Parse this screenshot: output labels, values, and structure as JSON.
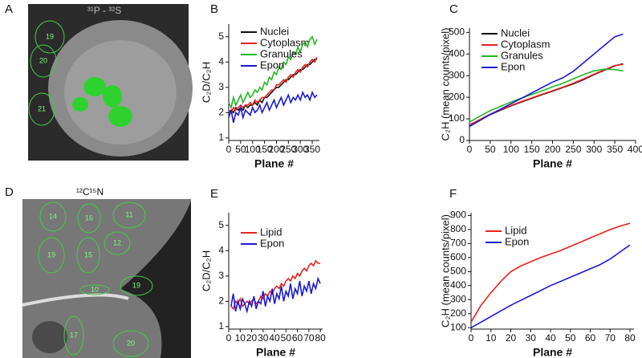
{
  "images": [
    {
      "panel_label": "A",
      "title": "³¹P - ³²S",
      "regions": [
        "19",
        "20",
        "21"
      ]
    },
    {
      "panel_label": "D",
      "title": "¹²C¹⁵N",
      "regions": [
        "14",
        "16",
        "11",
        "19",
        "12",
        "15",
        "10",
        "19",
        "17",
        "20"
      ]
    }
  ],
  "chart_data": [
    {
      "type": "line",
      "panel_label": "B",
      "xlabel": "Plane #",
      "ylabel": "C₂D/C₂H",
      "x": [
        0,
        10,
        20,
        30,
        40,
        50,
        60,
        70,
        80,
        90,
        100,
        110,
        120,
        130,
        140,
        150,
        160,
        170,
        180,
        190,
        200,
        210,
        220,
        230,
        240,
        250,
        260,
        270,
        280,
        290,
        300,
        310,
        320,
        330,
        340,
        350,
        360,
        370
      ],
      "series": [
        {
          "name": "Nuclei",
          "color": "#111111",
          "values": [
            2.0,
            2.1,
            2.0,
            2.2,
            2.1,
            2.2,
            2.1,
            2.3,
            2.2,
            2.3,
            2.3,
            2.4,
            2.3,
            2.5,
            2.4,
            2.6,
            2.6,
            2.7,
            2.8,
            2.9,
            3.0,
            3.0,
            3.1,
            3.2,
            3.3,
            3.3,
            3.4,
            3.5,
            3.5,
            3.6,
            3.7,
            3.7,
            3.8,
            3.9,
            3.9,
            4.0,
            4.1,
            4.1
          ]
        },
        {
          "name": "Cytoplasm",
          "color": "#e8221f",
          "values": [
            2.1,
            2.0,
            2.2,
            2.1,
            2.2,
            2.3,
            2.2,
            2.3,
            2.3,
            2.4,
            2.3,
            2.5,
            2.4,
            2.5,
            2.6,
            2.6,
            2.7,
            2.8,
            2.9,
            2.9,
            3.1,
            3.1,
            3.2,
            3.3,
            3.2,
            3.4,
            3.5,
            3.4,
            3.6,
            3.7,
            3.6,
            3.8,
            3.9,
            3.8,
            4.0,
            4.1,
            4.0,
            4.2
          ]
        },
        {
          "name": "Granules",
          "color": "#22b822",
          "values": [
            2.4,
            2.2,
            2.6,
            2.3,
            2.5,
            2.7,
            2.4,
            2.6,
            2.8,
            2.6,
            2.7,
            2.9,
            2.8,
            3.0,
            2.9,
            3.2,
            3.1,
            3.4,
            3.3,
            3.6,
            3.5,
            3.8,
            3.7,
            4.0,
            3.9,
            4.2,
            4.1,
            4.4,
            4.3,
            4.6,
            4.4,
            4.7,
            4.8,
            4.6,
            4.9,
            5.0,
            4.7,
            4.9
          ]
        },
        {
          "name": "Epon",
          "color": "#1a1ad6",
          "values": [
            1.8,
            2.1,
            1.6,
            2.0,
            1.9,
            2.2,
            1.8,
            2.1,
            2.0,
            1.9,
            2.2,
            2.0,
            2.1,
            2.3,
            2.0,
            2.2,
            2.4,
            2.1,
            2.3,
            2.5,
            2.2,
            2.4,
            2.6,
            2.3,
            2.5,
            2.7,
            2.4,
            2.6,
            2.5,
            2.7,
            2.5,
            2.8,
            2.6,
            2.7,
            2.5,
            2.8,
            2.6,
            2.7
          ]
        }
      ],
      "xlim": [
        0,
        380
      ],
      "ylim": [
        0.9,
        5.5
      ],
      "xticks": [
        0,
        50,
        100,
        150,
        200,
        250,
        300,
        350
      ],
      "yticks": [
        1,
        2,
        3,
        4,
        5
      ]
    },
    {
      "type": "line",
      "panel_label": "C",
      "xlabel": "Plane #",
      "ylabel": "C₂H (mean counts/pixel)",
      "x": [
        0,
        25,
        50,
        75,
        100,
        125,
        150,
        175,
        200,
        225,
        250,
        275,
        300,
        325,
        350,
        370
      ],
      "series": [
        {
          "name": "Nuclei",
          "color": "#111111",
          "values": [
            70,
            95,
            120,
            140,
            160,
            178,
            195,
            212,
            228,
            245,
            262,
            282,
            305,
            325,
            345,
            355
          ]
        },
        {
          "name": "Cytoplasm",
          "color": "#e8221f",
          "values": [
            72,
            97,
            122,
            142,
            162,
            180,
            197,
            214,
            230,
            247,
            265,
            285,
            307,
            327,
            347,
            352
          ]
        },
        {
          "name": "Granules",
          "color": "#22b822",
          "values": [
            85,
            112,
            138,
            158,
            178,
            196,
            213,
            230,
            248,
            265,
            285,
            305,
            322,
            330,
            328,
            322
          ]
        },
        {
          "name": "Epon",
          "color": "#1a1ad6",
          "values": [
            65,
            92,
            120,
            145,
            170,
            195,
            220,
            245,
            270,
            290,
            320,
            360,
            400,
            440,
            480,
            492
          ]
        }
      ],
      "xlim": [
        0,
        400
      ],
      "ylim": [
        0,
        520
      ],
      "xticks": [
        0,
        50,
        100,
        150,
        200,
        250,
        300,
        350,
        400
      ],
      "yticks": [
        0,
        100,
        200,
        300,
        400,
        500
      ]
    },
    {
      "type": "line",
      "panel_label": "E",
      "xlabel": "Plane #",
      "ylabel": "C₂D/C₂H",
      "x": [
        2,
        4,
        6,
        8,
        10,
        12,
        14,
        16,
        18,
        20,
        22,
        24,
        26,
        28,
        30,
        32,
        34,
        36,
        38,
        40,
        42,
        44,
        46,
        48,
        50,
        52,
        54,
        56,
        58,
        60,
        62,
        64,
        66,
        68,
        70,
        72,
        74,
        76,
        78,
        80
      ],
      "series": [
        {
          "name": "Lipid",
          "color": "#e8221f",
          "values": [
            1.8,
            1.7,
            2.0,
            1.9,
            2.1,
            1.8,
            1.9,
            2.0,
            1.9,
            2.0,
            2.1,
            1.9,
            2.0,
            2.2,
            2.1,
            2.3,
            2.2,
            2.4,
            2.3,
            2.5,
            2.6,
            2.5,
            2.7,
            2.6,
            2.8,
            2.9,
            2.8,
            3.0,
            2.9,
            3.1,
            3.0,
            3.2,
            3.3,
            3.2,
            3.4,
            3.5,
            3.4,
            3.6,
            3.5,
            3.5
          ]
        },
        {
          "name": "Epon",
          "color": "#1a1ad6",
          "values": [
            1.8,
            2.3,
            1.6,
            2.0,
            1.7,
            2.1,
            1.9,
            1.6,
            2.0,
            1.8,
            2.2,
            1.7,
            2.0,
            1.9,
            2.4,
            1.8,
            2.2,
            2.0,
            2.5,
            1.9,
            2.3,
            2.1,
            2.6,
            2.0,
            2.4,
            2.2,
            2.7,
            2.1,
            2.5,
            2.3,
            2.8,
            2.2,
            2.6,
            2.4,
            2.8,
            2.3,
            2.7,
            2.5,
            2.9,
            2.7
          ]
        }
      ],
      "xlim": [
        0,
        82
      ],
      "ylim": [
        0.9,
        5.5
      ],
      "xticks": [
        0,
        10,
        20,
        30,
        40,
        50,
        60,
        70,
        80
      ],
      "yticks": [
        1,
        2,
        3,
        4,
        5
      ]
    },
    {
      "type": "line",
      "panel_label": "F",
      "xlabel": "Plane #",
      "ylabel": "C₂H (mean counts/pixel)",
      "x": [
        0,
        5,
        10,
        15,
        20,
        25,
        30,
        35,
        40,
        45,
        50,
        55,
        60,
        65,
        70,
        75,
        80
      ],
      "series": [
        {
          "name": "Lipid",
          "color": "#e8221f",
          "values": [
            140,
            260,
            350,
            430,
            500,
            540,
            570,
            600,
            625,
            650,
            680,
            710,
            740,
            770,
            800,
            825,
            845
          ]
        },
        {
          "name": "Epon",
          "color": "#1a1ad6",
          "values": [
            100,
            140,
            180,
            220,
            260,
            295,
            330,
            365,
            400,
            430,
            460,
            490,
            520,
            550,
            590,
            640,
            690
          ]
        }
      ],
      "xlim": [
        0,
        82
      ],
      "ylim": [
        90,
        920
      ],
      "xticks": [
        0,
        10,
        20,
        30,
        40,
        50,
        60,
        70,
        80
      ],
      "yticks": [
        100,
        200,
        300,
        400,
        500,
        600,
        700,
        800,
        900
      ]
    }
  ]
}
